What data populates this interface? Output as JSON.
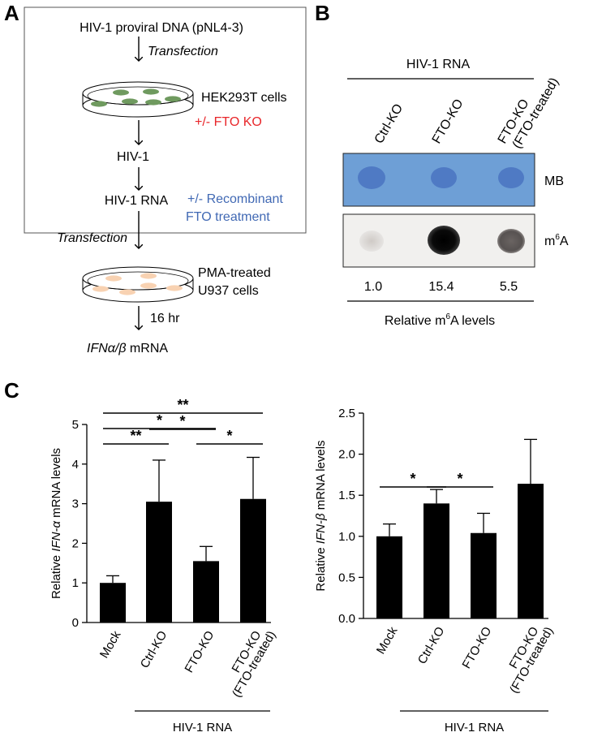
{
  "panel_labels": {
    "a": "A",
    "b": "B",
    "c": "C"
  },
  "colors": {
    "fto_ko": "#e8262a",
    "recombinant": "#4169b4",
    "mb_blot": "#6e9fd6",
    "hek_cell": "#6f9a5f",
    "u937_cell": "#f8d2b2"
  },
  "schematic": {
    "proviral": "HIV-1 proviral DNA (pNL4-3)",
    "transfection1": "Transfection",
    "hek_line": "HEK293T cells",
    "fto_ko": "+/- FTO KO",
    "hiv1": "HIV-1",
    "hiv1_rna": "HIV-1 RNA",
    "recombinant_line1": "+/- Recombinant",
    "recombinant_line2": "FTO treatment",
    "transfection2": "Transfection",
    "pma_line1": "PMA-treated",
    "pma_line2": "U937 cells",
    "time": "16 hr",
    "ifn_italic": "IFNα/β",
    "ifn_rest": " mRNA"
  },
  "blot": {
    "header": "HIV-1 RNA",
    "lanes": [
      "Ctrl-KO",
      "FTO-KO",
      "FTO-KO"
    ],
    "lane3_sub": "(FTO-treated)",
    "row_mb": "MB",
    "row_m6a_base": "m",
    "row_m6a_sup": "6",
    "row_m6a_end": "A",
    "values": [
      "1.0",
      "15.4",
      "5.5"
    ],
    "footer_a": "Relative m",
    "footer_sup": "6",
    "footer_b": "A levels"
  },
  "chart_data": [
    {
      "type": "bar",
      "ylabel_pre": "Relative ",
      "ylabel_ital": "IFN-α",
      "ylabel_post": " mRNA levels",
      "categories": [
        "Mock",
        "Ctrl-KO",
        "FTO-KO",
        "FTO-KO"
      ],
      "category_sub": [
        "",
        "",
        "",
        "(FTO-treated)"
      ],
      "values": [
        1.0,
        3.05,
        1.55,
        3.12
      ],
      "errors": [
        0.18,
        1.05,
        0.37,
        1.05
      ],
      "ylim": [
        0,
        5
      ],
      "yticks": [
        "0",
        "1",
        "2",
        "3",
        "4",
        "5"
      ],
      "group_label": "HIV-1 RNA",
      "significance": [
        {
          "from": 0,
          "to": 1,
          "label": "**"
        },
        {
          "from": 1,
          "to": 2,
          "label": "*"
        },
        {
          "from": 2,
          "to": 3,
          "label": "*"
        },
        {
          "from": 0,
          "to": 2,
          "label": "*"
        },
        {
          "from": 0,
          "to": 3,
          "label": "**"
        }
      ]
    },
    {
      "type": "bar",
      "ylabel_pre": "Relative ",
      "ylabel_ital": "IFN-β",
      "ylabel_post": " mRNA levels",
      "categories": [
        "Mock",
        "Ctrl-KO",
        "FTO-KO",
        "FTO-KO"
      ],
      "category_sub": [
        "",
        "",
        "",
        "(FTO-treated)"
      ],
      "values": [
        1.0,
        1.4,
        1.04,
        1.64
      ],
      "errors": [
        0.15,
        0.17,
        0.24,
        0.54
      ],
      "ylim": [
        0,
        2.5
      ],
      "yticks": [
        "0.0",
        "0.5",
        "1.0",
        "1.5",
        "2.0",
        "2.5"
      ],
      "group_label": "HIV-1 RNA",
      "significance": [
        {
          "from": 0,
          "to": 1,
          "label": "*"
        },
        {
          "from": 1,
          "to": 2,
          "label": "*"
        }
      ]
    }
  ]
}
